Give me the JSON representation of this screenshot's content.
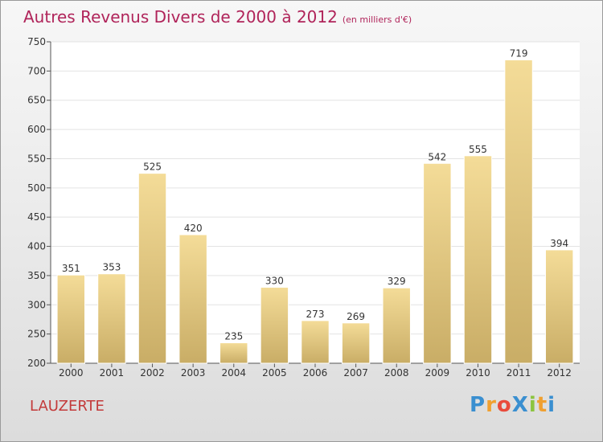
{
  "chart_data": {
    "type": "bar",
    "title": "Autres Revenus Divers de 2000 à 2012",
    "subtitle": "(en milliers d'€)",
    "categories": [
      "2000",
      "2001",
      "2002",
      "2003",
      "2004",
      "2005",
      "2006",
      "2007",
      "2008",
      "2009",
      "2010",
      "2011",
      "2012"
    ],
    "values": [
      351,
      353,
      525,
      420,
      235,
      330,
      273,
      269,
      329,
      542,
      555,
      719,
      394
    ],
    "ylim": [
      200,
      750
    ],
    "yticks": [
      200,
      250,
      300,
      350,
      400,
      450,
      500,
      550,
      600,
      650,
      700,
      750
    ],
    "grid": true,
    "xlabel": "",
    "ylabel": "",
    "bar_color_top": "#f4dc98",
    "bar_color_bottom": "#c9ad66"
  },
  "location": "LAUZERTE",
  "logo": {
    "text": "Proxiti",
    "letters": [
      {
        "ch": "P",
        "color": "#3a8fd0"
      },
      {
        "ch": "r",
        "color": "#f0a030"
      },
      {
        "ch": "o",
        "color": "#e94b3c"
      },
      {
        "ch": "X",
        "color": "#3a8fd0"
      },
      {
        "ch": "i",
        "color": "#8cc43f"
      },
      {
        "ch": "t",
        "color": "#f0a030"
      },
      {
        "ch": "i",
        "color": "#3a8fd0"
      }
    ]
  }
}
